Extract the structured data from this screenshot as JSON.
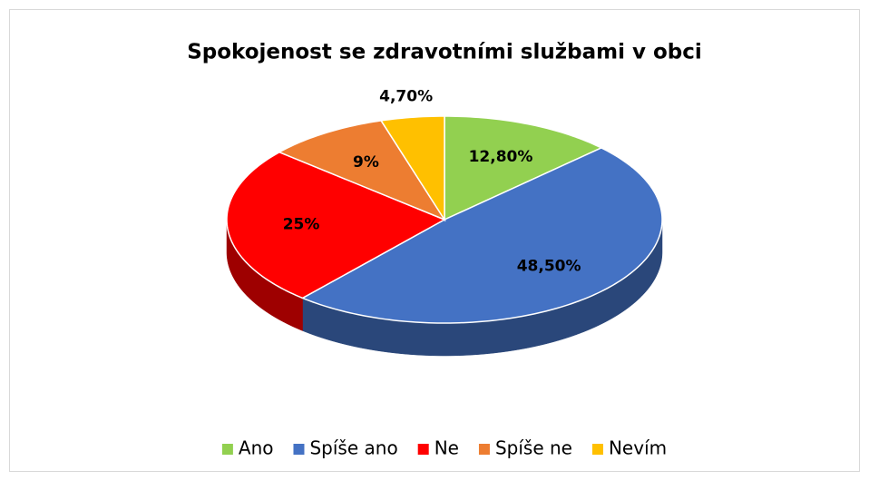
{
  "chart_data": {
    "type": "pie3d",
    "title": "Spokojenost se zdravotními službami v obci",
    "categories": [
      "Ano",
      "Spíše ano",
      "Ne",
      "Spíše ne",
      "Nevím"
    ],
    "values": [
      12.8,
      48.5,
      25,
      9,
      4.7
    ],
    "value_labels": [
      "12,80%",
      "48,50%",
      "25%",
      "9%",
      "4,70%"
    ],
    "colors": [
      "#92d050",
      "#4472c4",
      "#ff0000",
      "#ed7d31",
      "#ffc000"
    ],
    "legend": "bottom"
  }
}
